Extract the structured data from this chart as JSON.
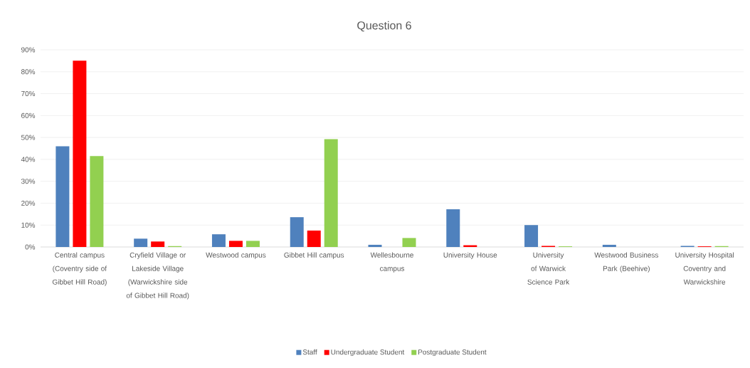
{
  "chart_data": {
    "type": "bar",
    "title": "Question 6",
    "categories": [
      "Central campus (Coventry side of Gibbet Hill Road)",
      "Cryfield Village or Lakeside Village (Warwickshire side of Gibbet Hill Road)",
      "Westwood campus",
      "Gibbet Hill campus",
      "Wellesbourne campus",
      "University House",
      "University of Warwick Science Park",
      "Westwood Business Park (Beehive)",
      "University Hospital Coventry and Warwickshire"
    ],
    "series": [
      {
        "name": "Staff",
        "color": "#4f81bd",
        "values": [
          46,
          3.8,
          5.8,
          13.6,
          1.0,
          17.2,
          10.0,
          1.0,
          0.5
        ]
      },
      {
        "name": "Undergraduate Student",
        "color": "#ff0000",
        "values": [
          85,
          2.5,
          2.8,
          7.5,
          0,
          0.8,
          0.5,
          0,
          0.3
        ]
      },
      {
        "name": "Postgraduate Student",
        "color": "#92d050",
        "values": [
          41.5,
          0.4,
          2.8,
          49.2,
          4.1,
          0,
          0.3,
          0,
          0.4
        ]
      }
    ],
    "ylim": [
      0,
      90
    ],
    "yticks": [
      {
        "value": 0,
        "label": "0%"
      },
      {
        "value": 10,
        "label": "10%"
      },
      {
        "value": 20,
        "label": "20%"
      },
      {
        "value": 30,
        "label": "30%"
      },
      {
        "value": 40,
        "label": "40%"
      },
      {
        "value": 50,
        "label": "50%"
      },
      {
        "value": 60,
        "label": "60%"
      },
      {
        "value": 70,
        "label": "70%"
      },
      {
        "value": 80,
        "label": "80%"
      },
      {
        "value": 90,
        "label": "90%"
      }
    ],
    "grid": "y",
    "legend": "bottom"
  }
}
